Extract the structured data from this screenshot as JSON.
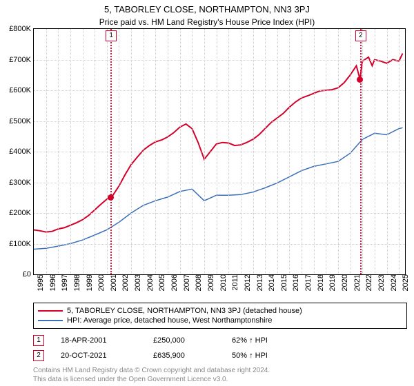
{
  "title": "5, TABORLEY CLOSE, NORTHAMPTON, NN3 3PJ",
  "subtitle": "Price paid vs. HM Land Registry's House Price Index (HPI)",
  "chart": {
    "type": "line",
    "x_years": [
      1995,
      1996,
      1997,
      1998,
      1999,
      2000,
      2001,
      2002,
      2003,
      2004,
      2005,
      2006,
      2007,
      2008,
      2009,
      2010,
      2011,
      2012,
      2013,
      2014,
      2015,
      2016,
      2017,
      2018,
      2019,
      2020,
      2021,
      2022,
      2023,
      2024,
      2025
    ],
    "xlim": [
      1995,
      2025.5
    ],
    "ylim": [
      0,
      800000
    ],
    "ytick_step": 100000,
    "ytick_prefix": "£",
    "ytick_suffix": "K",
    "grid_color": "#d0d0d0",
    "background_color": "#ffffff",
    "border_color": "#000000",
    "tick_fontsize": 11,
    "series": [
      {
        "name": "property",
        "label": "5, TABORLEY CLOSE, NORTHAMPTON, NN3 3PJ (detached house)",
        "color": "#d4002a",
        "width": 2,
        "data": [
          [
            1995,
            145000
          ],
          [
            1995.5,
            142000
          ],
          [
            1996,
            138000
          ],
          [
            1996.5,
            140000
          ],
          [
            1997,
            148000
          ],
          [
            1997.5,
            152000
          ],
          [
            1998,
            160000
          ],
          [
            1998.5,
            168000
          ],
          [
            1999,
            178000
          ],
          [
            1999.5,
            192000
          ],
          [
            2000,
            210000
          ],
          [
            2000.5,
            228000
          ],
          [
            2001,
            245000
          ],
          [
            2001.3,
            250000
          ],
          [
            2001.5,
            258000
          ],
          [
            2002,
            288000
          ],
          [
            2002.5,
            325000
          ],
          [
            2003,
            358000
          ],
          [
            2003.5,
            382000
          ],
          [
            2004,
            405000
          ],
          [
            2004.5,
            420000
          ],
          [
            2005,
            432000
          ],
          [
            2005.5,
            438000
          ],
          [
            2006,
            448000
          ],
          [
            2006.5,
            462000
          ],
          [
            2007,
            480000
          ],
          [
            2007.5,
            490000
          ],
          [
            2008,
            475000
          ],
          [
            2008.5,
            430000
          ],
          [
            2009,
            375000
          ],
          [
            2009.5,
            400000
          ],
          [
            2010,
            425000
          ],
          [
            2010.5,
            430000
          ],
          [
            2011,
            428000
          ],
          [
            2011.5,
            420000
          ],
          [
            2012,
            422000
          ],
          [
            2012.5,
            430000
          ],
          [
            2013,
            440000
          ],
          [
            2013.5,
            455000
          ],
          [
            2014,
            475000
          ],
          [
            2014.5,
            495000
          ],
          [
            2015,
            510000
          ],
          [
            2015.5,
            525000
          ],
          [
            2016,
            545000
          ],
          [
            2016.5,
            562000
          ],
          [
            2017,
            575000
          ],
          [
            2017.5,
            582000
          ],
          [
            2018,
            590000
          ],
          [
            2018.5,
            598000
          ],
          [
            2019,
            600000
          ],
          [
            2019.5,
            602000
          ],
          [
            2020,
            608000
          ],
          [
            2020.5,
            625000
          ],
          [
            2021,
            650000
          ],
          [
            2021.5,
            680000
          ],
          [
            2021.8,
            635900
          ],
          [
            2022,
            695000
          ],
          [
            2022.5,
            708000
          ],
          [
            2022.8,
            680000
          ],
          [
            2023,
            700000
          ],
          [
            2023.5,
            695000
          ],
          [
            2024,
            688000
          ],
          [
            2024.5,
            700000
          ],
          [
            2025,
            695000
          ],
          [
            2025.3,
            720000
          ]
        ]
      },
      {
        "name": "hpi",
        "label": "HPI: Average price, detached house, West Northamptonshire",
        "color": "#3a6fb7",
        "width": 1.5,
        "data": [
          [
            1995,
            82000
          ],
          [
            1996,
            85000
          ],
          [
            1997,
            92000
          ],
          [
            1998,
            100000
          ],
          [
            1999,
            112000
          ],
          [
            2000,
            128000
          ],
          [
            2001,
            145000
          ],
          [
            2002,
            170000
          ],
          [
            2003,
            200000
          ],
          [
            2004,
            225000
          ],
          [
            2005,
            240000
          ],
          [
            2006,
            252000
          ],
          [
            2007,
            270000
          ],
          [
            2008,
            278000
          ],
          [
            2009,
            240000
          ],
          [
            2010,
            258000
          ],
          [
            2011,
            258000
          ],
          [
            2012,
            260000
          ],
          [
            2013,
            268000
          ],
          [
            2014,
            282000
          ],
          [
            2015,
            298000
          ],
          [
            2016,
            318000
          ],
          [
            2017,
            338000
          ],
          [
            2018,
            352000
          ],
          [
            2019,
            360000
          ],
          [
            2020,
            368000
          ],
          [
            2021,
            395000
          ],
          [
            2022,
            440000
          ],
          [
            2023,
            460000
          ],
          [
            2024,
            455000
          ],
          [
            2025,
            475000
          ],
          [
            2025.3,
            478000
          ]
        ]
      }
    ],
    "markers": [
      {
        "n": "1",
        "x": 2001.3,
        "y": 250000,
        "color": "#d4002a",
        "box_top_y": 798000
      },
      {
        "n": "2",
        "x": 2021.8,
        "y": 635900,
        "color": "#d4002a",
        "box_top_y": 798000
      }
    ]
  },
  "legend": {
    "rows": [
      {
        "color": "#d4002a",
        "label": "5, TABORLEY CLOSE, NORTHAMPTON, NN3 3PJ (detached house)"
      },
      {
        "color": "#3a6fb7",
        "label": "HPI: Average price, detached house, West Northamptonshire"
      }
    ]
  },
  "events": [
    {
      "n": "1",
      "color": "#d4002a",
      "date": "18-APR-2001",
      "price": "£250,000",
      "pct": "62% ↑ HPI"
    },
    {
      "n": "2",
      "color": "#d4002a",
      "date": "20-OCT-2021",
      "price": "£635,900",
      "pct": "50% ↑ HPI"
    }
  ],
  "footer_line1": "Contains HM Land Registry data © Crown copyright and database right 2024.",
  "footer_line2": "This data is licensed under the Open Government Licence v3.0."
}
